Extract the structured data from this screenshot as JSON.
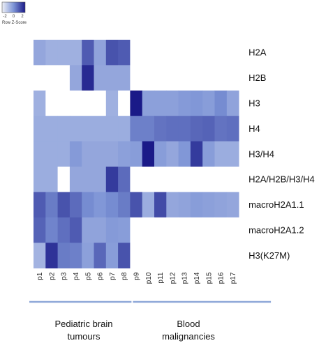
{
  "chart_data": {
    "type": "heatmap",
    "color_key": {
      "title": "Row Z-Score",
      "ticks": [
        "-2",
        "0",
        "2"
      ],
      "colors": [
        "#eef0f6",
        "#7d94d6",
        "#1a1a88"
      ]
    },
    "columns": [
      "p1",
      "p2",
      "p3",
      "p4",
      "p5",
      "p6",
      "p7",
      "p8",
      "p9",
      "p10",
      "p11",
      "p12",
      "p13",
      "p14",
      "p15",
      "p16",
      "p17"
    ],
    "rows": [
      "H2A",
      "H2B",
      "H3",
      "H4",
      "H3/H4",
      "H2A/H2B/H3/H4",
      "macroH2A1.1",
      "macroH2A1.2",
      "H3(K27M)"
    ],
    "values": [
      [
        -0.6,
        -0.9,
        -0.9,
        -0.9,
        1.4,
        -0.5,
        1.6,
        1.4,
        null,
        null,
        null,
        null,
        null,
        null,
        null,
        null,
        null
      ],
      [
        null,
        null,
        null,
        -0.6,
        2.6,
        -0.6,
        -0.6,
        -0.6,
        null,
        null,
        null,
        null,
        null,
        null,
        null,
        null,
        null
      ],
      [
        -0.9,
        null,
        null,
        null,
        null,
        null,
        -0.9,
        null,
        3.0,
        -0.4,
        -0.4,
        -0.4,
        -0.2,
        -0.1,
        -0.3,
        0.2,
        -0.5
      ],
      [
        -0.8,
        -0.8,
        -0.8,
        -0.8,
        -0.8,
        -0.8,
        -0.8,
        -0.8,
        0.5,
        0.5,
        0.8,
        0.9,
        0.9,
        1.1,
        1.2,
        0.8,
        0.9
      ],
      [
        -0.8,
        -0.8,
        -0.8,
        -0.2,
        -0.6,
        -0.6,
        -0.6,
        -0.4,
        -0.3,
        3.0,
        -0.3,
        -0.6,
        -0.1,
        2.2,
        -0.3,
        -0.8,
        -0.8
      ],
      [
        -0.8,
        -0.8,
        null,
        -0.6,
        -0.6,
        -0.6,
        2.2,
        1.0,
        null,
        null,
        null,
        null,
        null,
        null,
        null,
        null,
        null
      ],
      [
        1.4,
        0.6,
        1.6,
        1.0,
        0.2,
        -0.1,
        0.2,
        0.6,
        1.6,
        -0.8,
        1.8,
        -0.6,
        -0.5,
        -0.3,
        -0.4,
        -0.5,
        -0.6
      ],
      [
        1.2,
        0.4,
        0.9,
        1.4,
        -0.5,
        -0.5,
        -0.2,
        -0.3,
        null,
        null,
        null,
        null,
        null,
        null,
        null,
        null,
        null
      ],
      [
        -1.0,
        2.4,
        0.6,
        0.5,
        -0.4,
        1.1,
        -0.3,
        1.6,
        null,
        null,
        null,
        null,
        null,
        null,
        null,
        null,
        null
      ]
    ],
    "groups": [
      {
        "name": "Pediatric brain tumours",
        "lines": [
          "Pediatric brain",
          "tumours"
        ],
        "columns": [
          "p1",
          "p2",
          "p3",
          "p4",
          "p5",
          "p6",
          "p7",
          "p8"
        ]
      },
      {
        "name": "Blood malignancies",
        "lines": [
          "Blood",
          "malignancies"
        ],
        "columns": [
          "p9",
          "p10",
          "p11",
          "p12",
          "p13",
          "p14",
          "p15",
          "p16",
          "p17"
        ]
      }
    ],
    "group_bar_color": "#8fa8d8",
    "na_color": "#ffffff",
    "grid": false
  }
}
